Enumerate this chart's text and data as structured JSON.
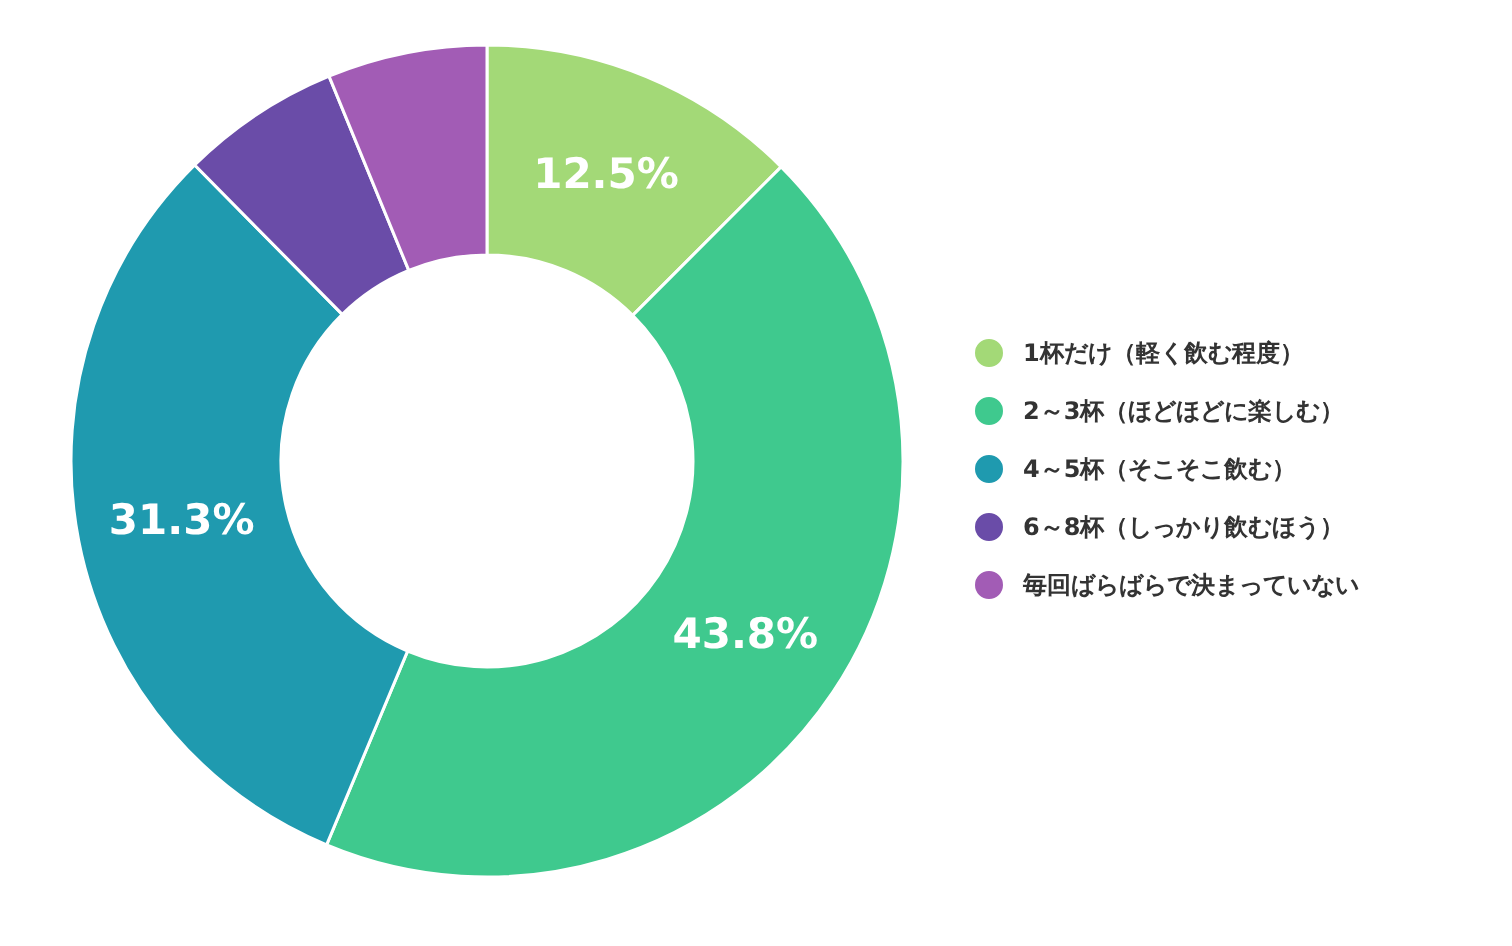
{
  "chart_data": {
    "type": "donut",
    "categories": [
      "1杯だけ（軽く飲む程度）",
      "2～3杯（ほどほどに楽しむ）",
      "4～5杯（そこそこ飲む）",
      "6～8杯（しっかり飲むほう）",
      "毎回ばらばらで決まっていない"
    ],
    "values": [
      12.5,
      43.8,
      31.3,
      6.2,
      6.2
    ],
    "colors": [
      "#a3d977",
      "#3fc98e",
      "#1f9aaf",
      "#6a4ca8",
      "#a25cb5"
    ],
    "value_labels": [
      "12.5%",
      "43.8%",
      "31.3%",
      null,
      null
    ],
    "legend": "right"
  }
}
